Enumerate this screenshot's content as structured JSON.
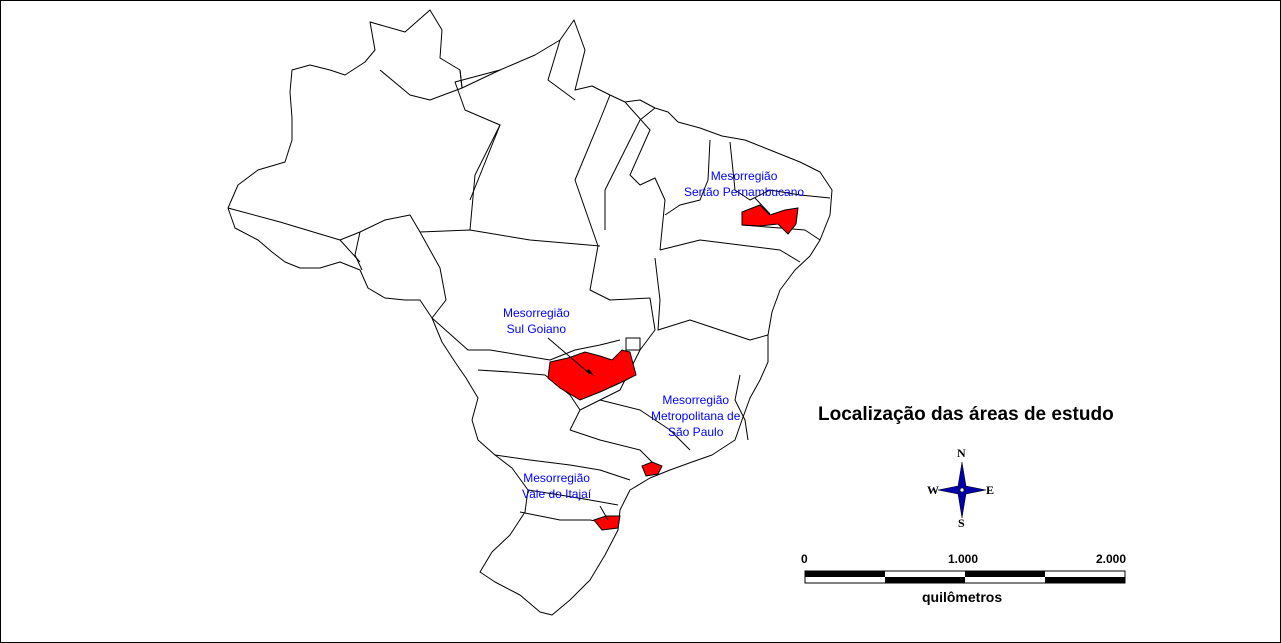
{
  "map": {
    "title": "Localização das áreas de estudo",
    "colors": {
      "study_area": "#ff0000",
      "label_text": "#0000ff",
      "compass": "#0000aa"
    },
    "study_areas": [
      {
        "line1": "Mesorregião",
        "line2": "Sertão Pernambucano"
      },
      {
        "line1": "Mesorregião",
        "line2": "Sul Goiano"
      },
      {
        "line1": "Mesorregião",
        "line2": "Metropolitana de",
        "line3": "São Paulo"
      },
      {
        "line1": "Mesorregião",
        "line2": "Vale do Itajaí"
      }
    ],
    "compass": {
      "n": "N",
      "s": "S",
      "e": "E",
      "w": "W"
    },
    "scale_bar": {
      "start": "0",
      "mid": "1.000",
      "end": "2.000",
      "unit": "quilômetros"
    }
  }
}
